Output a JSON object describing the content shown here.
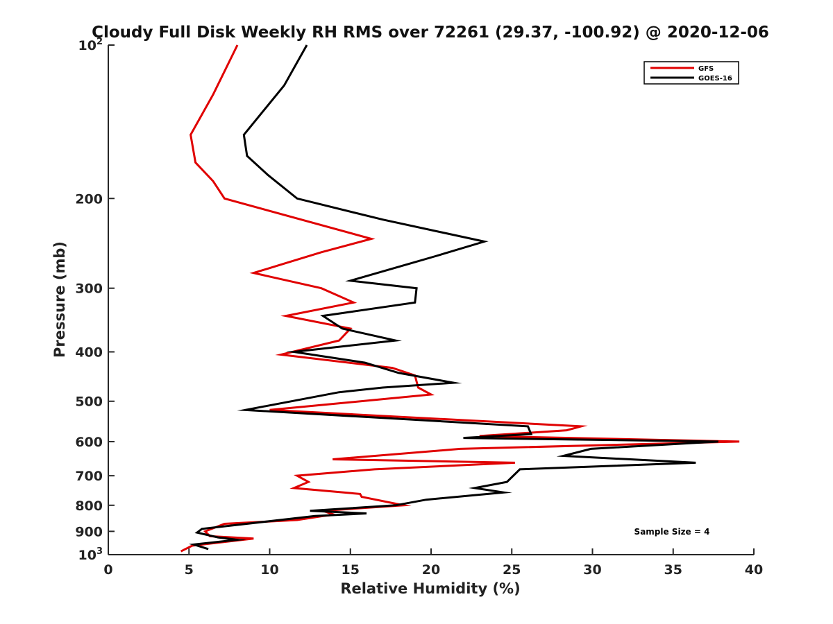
{
  "chart_data": {
    "type": "line",
    "title": "Cloudy Full Disk Weekly RH RMS over 72261 (29.37, -100.92) @ 2020-12-06",
    "xlabel": "Relative Humidity (%)",
    "ylabel": "Pressure (mb)",
    "xlim": [
      0,
      40
    ],
    "ylim": [
      100,
      1000
    ],
    "y_scale": "log",
    "y_reversed": true,
    "x_ticks": [
      0,
      5,
      10,
      15,
      20,
      25,
      30,
      35,
      40
    ],
    "y_ticks": [
      100,
      200,
      300,
      400,
      500,
      600,
      700,
      800,
      900,
      1000
    ],
    "y_tick_labels": [
      {
        "base": "10",
        "exp": "2"
      },
      {
        "base": "200",
        "exp": ""
      },
      {
        "base": "300",
        "exp": ""
      },
      {
        "base": "400",
        "exp": ""
      },
      {
        "base": "500",
        "exp": ""
      },
      {
        "base": "600",
        "exp": ""
      },
      {
        "base": "700",
        "exp": ""
      },
      {
        "base": "800",
        "exp": ""
      },
      {
        "base": "900",
        "exp": ""
      },
      {
        "base": "10",
        "exp": "3"
      }
    ],
    "grid": false,
    "legend_position": "top-right",
    "annotation": "Sample Size = 4",
    "series": [
      {
        "name": "GFS",
        "color": "#e00000",
        "points": [
          [
            8.0,
            100
          ],
          [
            6.5,
            125
          ],
          [
            5.1,
            150
          ],
          [
            5.4,
            170
          ],
          [
            6.5,
            185
          ],
          [
            7.2,
            200
          ],
          [
            16.3,
            240
          ],
          [
            13.2,
            255
          ],
          [
            9.0,
            280
          ],
          [
            13.2,
            300
          ],
          [
            15.2,
            320
          ],
          [
            11.0,
            340
          ],
          [
            15.0,
            360
          ],
          [
            14.3,
            380
          ],
          [
            10.7,
            405
          ],
          [
            17.6,
            430
          ],
          [
            19.0,
            445
          ],
          [
            19.2,
            470
          ],
          [
            20.0,
            485
          ],
          [
            10.0,
            520
          ],
          [
            29.3,
            560
          ],
          [
            28.4,
            570
          ],
          [
            23.0,
            585
          ],
          [
            39.1,
            600
          ],
          [
            21.8,
            620
          ],
          [
            13.9,
            650
          ],
          [
            25.2,
            660
          ],
          [
            16.5,
            680
          ],
          [
            11.7,
            700
          ],
          [
            12.4,
            720
          ],
          [
            11.5,
            740
          ],
          [
            15.6,
            760
          ],
          [
            15.7,
            770
          ],
          [
            18.3,
            800
          ],
          [
            13.3,
            820
          ],
          [
            14.0,
            835
          ],
          [
            13.3,
            840
          ],
          [
            11.7,
            855
          ],
          [
            7.2,
            870
          ],
          [
            6.0,
            900
          ],
          [
            6.3,
            920
          ],
          [
            9.0,
            930
          ],
          [
            5.2,
            960
          ],
          [
            4.5,
            985
          ]
        ]
      },
      {
        "name": "GOES-16",
        "color": "#000000",
        "points": [
          [
            12.3,
            100
          ],
          [
            10.9,
            120
          ],
          [
            8.4,
            150
          ],
          [
            8.6,
            165
          ],
          [
            9.9,
            180
          ],
          [
            11.7,
            200
          ],
          [
            17.0,
            220
          ],
          [
            23.3,
            243
          ],
          [
            20.2,
            260
          ],
          [
            15.0,
            290
          ],
          [
            19.1,
            300
          ],
          [
            19.0,
            320
          ],
          [
            13.3,
            340
          ],
          [
            14.5,
            360
          ],
          [
            17.8,
            380
          ],
          [
            11.5,
            400
          ],
          [
            15.9,
            420
          ],
          [
            18.0,
            440
          ],
          [
            21.4,
            460
          ],
          [
            17.0,
            470
          ],
          [
            14.3,
            480
          ],
          [
            8.5,
            520
          ],
          [
            26.0,
            560
          ],
          [
            26.2,
            580
          ],
          [
            22.0,
            590
          ],
          [
            37.8,
            600
          ],
          [
            29.9,
            620
          ],
          [
            28.2,
            640
          ],
          [
            36.4,
            660
          ],
          [
            25.5,
            680
          ],
          [
            24.7,
            720
          ],
          [
            22.7,
            740
          ],
          [
            24.5,
            755
          ],
          [
            19.7,
            780
          ],
          [
            17.8,
            800
          ],
          [
            12.5,
            820
          ],
          [
            16.0,
            830
          ],
          [
            12.8,
            840
          ],
          [
            5.8,
            890
          ],
          [
            5.5,
            905
          ],
          [
            6.8,
            925
          ],
          [
            8.0,
            935
          ],
          [
            5.3,
            955
          ],
          [
            6.2,
            975
          ]
        ]
      }
    ]
  }
}
